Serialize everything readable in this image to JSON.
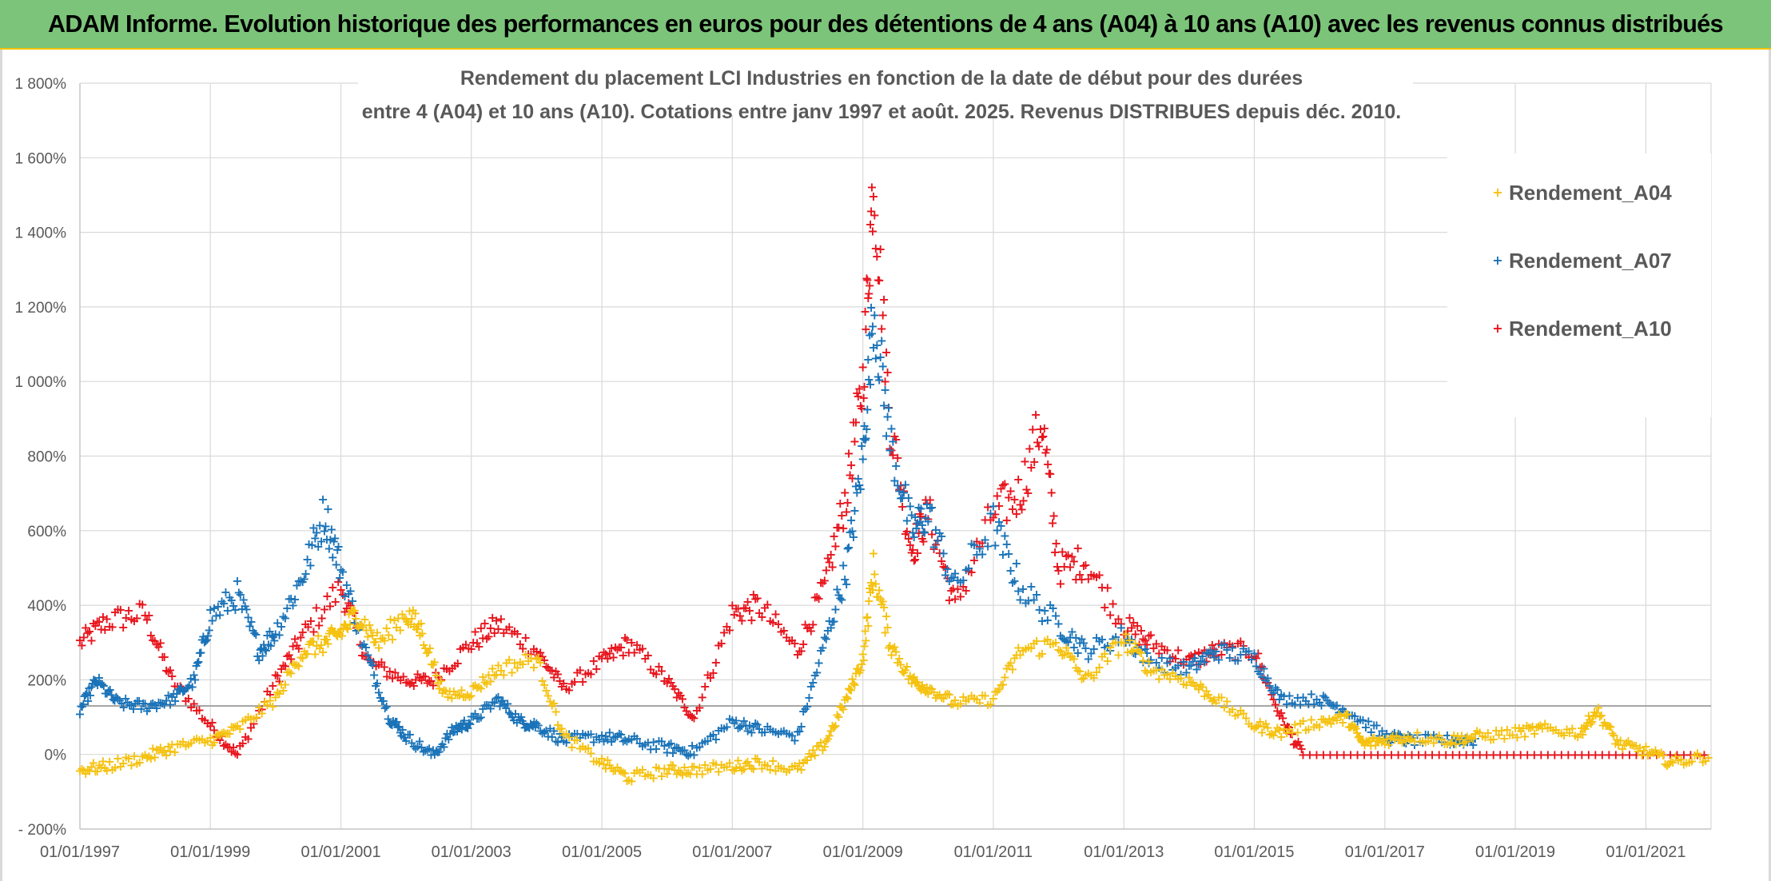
{
  "banner": {
    "title": "ADAM Informe. Evolution historique des performances en euros pour des détentions de 4 ans (A04) à 10 ans (A10) avec les revenus connus distribués"
  },
  "chart_data": {
    "type": "scatter",
    "title_lines": [
      "Rendement du placement LCI Industries en fonction de la date de début pour des durées",
      "entre 4 (A04) et 10 ans (A10). Cotations entre janv 1997 et août. 2025. Revenus DISTRIBUES depuis déc. 2010."
    ],
    "x_axis": {
      "type": "date",
      "range": [
        "1997-01-01",
        "2022-01-01"
      ],
      "tick_labels": [
        "01/01/1997",
        "01/01/1999",
        "01/01/2001",
        "01/01/2003",
        "01/01/2005",
        "01/01/2007",
        "01/01/2009",
        "01/01/2011",
        "01/01/2013",
        "01/01/2015",
        "01/01/2017",
        "01/01/2019",
        "01/01/2021"
      ]
    },
    "y_axis": {
      "unit": "%",
      "range": [
        -200,
        1800
      ],
      "tick_values": [
        -200,
        0,
        200,
        400,
        600,
        800,
        1000,
        1200,
        1400,
        1600,
        1800
      ],
      "tick_labels": [
        "- 200%",
        "0%",
        "200%",
        "400%",
        "600%",
        "800%",
        "1 000%",
        "1 200%",
        "1 400%",
        "1 600%",
        "1 800%"
      ]
    },
    "grid": true,
    "reference_line_y": 130,
    "legend_position": "top-right",
    "marker": "+",
    "series": [
      {
        "name": "Rendement_A04",
        "color": "#f5c211",
        "points": [
          [
            "1997-01-01",
            -40
          ],
          [
            "1997-06-01",
            -30
          ],
          [
            "1998-01-01",
            -5
          ],
          [
            "1998-06-01",
            20
          ],
          [
            "1999-01-01",
            40
          ],
          [
            "1999-06-01",
            70
          ],
          [
            "2000-01-01",
            150
          ],
          [
            "2000-06-01",
            280
          ],
          [
            "2000-10-01",
            300
          ],
          [
            "2001-01-01",
            330
          ],
          [
            "2001-04-01",
            380
          ],
          [
            "2001-08-01",
            300
          ],
          [
            "2002-01-01",
            380
          ],
          [
            "2002-04-01",
            330
          ],
          [
            "2002-08-01",
            160
          ],
          [
            "2003-01-01",
            170
          ],
          [
            "2003-06-01",
            230
          ],
          [
            "2004-01-01",
            260
          ],
          [
            "2004-06-01",
            50
          ],
          [
            "2005-01-01",
            -20
          ],
          [
            "2005-06-01",
            -60
          ],
          [
            "2006-01-01",
            -40
          ],
          [
            "2006-06-01",
            -40
          ],
          [
            "2007-01-01",
            -30
          ],
          [
            "2007-06-01",
            -20
          ],
          [
            "2008-01-01",
            -40
          ],
          [
            "2008-06-01",
            30
          ],
          [
            "2008-10-01",
            150
          ],
          [
            "2009-01-01",
            260
          ],
          [
            "2009-03-01",
            500
          ],
          [
            "2009-06-01",
            300
          ],
          [
            "2009-10-01",
            200
          ],
          [
            "2010-01-01",
            180
          ],
          [
            "2010-06-01",
            140
          ],
          [
            "2011-01-01",
            150
          ],
          [
            "2011-06-01",
            280
          ],
          [
            "2012-01-01",
            300
          ],
          [
            "2012-06-01",
            200
          ],
          [
            "2013-01-01",
            310
          ],
          [
            "2013-06-01",
            230
          ],
          [
            "2014-01-01",
            200
          ],
          [
            "2014-06-01",
            150
          ],
          [
            "2015-01-01",
            80
          ],
          [
            "2015-06-01",
            60
          ],
          [
            "2016-01-01",
            90
          ],
          [
            "2016-06-01",
            100
          ],
          [
            "2016-09-01",
            30
          ],
          [
            "2017-01-01",
            40
          ],
          [
            "2017-06-01",
            50
          ],
          [
            "2018-01-01",
            40
          ],
          [
            "2018-06-01",
            50
          ],
          [
            "2019-01-01",
            60
          ],
          [
            "2019-06-01",
            70
          ],
          [
            "2020-01-01",
            60
          ],
          [
            "2020-04-01",
            120
          ],
          [
            "2020-08-01",
            30
          ],
          [
            "2021-01-01",
            10
          ],
          [
            "2021-06-01",
            -20
          ],
          [
            "2022-01-01",
            0
          ]
        ]
      },
      {
        "name": "Rendement_A07",
        "color": "#1a73b8",
        "points": [
          [
            "1997-01-01",
            120
          ],
          [
            "1997-04-01",
            200
          ],
          [
            "1997-08-01",
            140
          ],
          [
            "1998-01-01",
            130
          ],
          [
            "1998-06-01",
            150
          ],
          [
            "1998-10-01",
            200
          ],
          [
            "1999-01-01",
            370
          ],
          [
            "1999-06-01",
            430
          ],
          [
            "1999-10-01",
            280
          ],
          [
            "2000-01-01",
            330
          ],
          [
            "2000-06-01",
            480
          ],
          [
            "2000-10-01",
            650
          ],
          [
            "2001-01-01",
            500
          ],
          [
            "2001-06-01",
            260
          ],
          [
            "2001-10-01",
            100
          ],
          [
            "2002-01-01",
            50
          ],
          [
            "2002-06-01",
            0
          ],
          [
            "2002-10-01",
            70
          ],
          [
            "2003-01-01",
            90
          ],
          [
            "2003-06-01",
            150
          ],
          [
            "2003-10-01",
            90
          ],
          [
            "2004-01-01",
            80
          ],
          [
            "2004-06-01",
            40
          ],
          [
            "2005-01-01",
            50
          ],
          [
            "2005-06-01",
            40
          ],
          [
            "2006-01-01",
            20
          ],
          [
            "2006-06-01",
            10
          ],
          [
            "2007-01-01",
            90
          ],
          [
            "2007-06-01",
            70
          ],
          [
            "2008-01-01",
            50
          ],
          [
            "2008-06-01",
            300
          ],
          [
            "2008-10-01",
            500
          ],
          [
            "2009-01-01",
            800
          ],
          [
            "2009-03-01",
            1200
          ],
          [
            "2009-06-01",
            850
          ],
          [
            "2009-10-01",
            600
          ],
          [
            "2010-01-01",
            650
          ],
          [
            "2010-06-01",
            450
          ],
          [
            "2011-01-01",
            620
          ],
          [
            "2011-06-01",
            450
          ],
          [
            "2012-01-01",
            350
          ],
          [
            "2012-06-01",
            280
          ],
          [
            "2013-01-01",
            320
          ],
          [
            "2013-06-01",
            250
          ],
          [
            "2014-01-01",
            230
          ],
          [
            "2014-06-01",
            280
          ],
          [
            "2015-01-01",
            260
          ],
          [
            "2015-06-01",
            150
          ],
          [
            "2016-01-01",
            150
          ],
          [
            "2016-06-01",
            120
          ],
          [
            "2017-01-01",
            50
          ],
          [
            "2017-06-01",
            40
          ],
          [
            "2018-01-01",
            40
          ],
          [
            "2018-06-01",
            40
          ]
        ]
      },
      {
        "name": "Rendement_A10",
        "color": "#e8141c",
        "points": [
          [
            "1997-01-01",
            300
          ],
          [
            "1997-06-01",
            360
          ],
          [
            "1998-01-01",
            380
          ],
          [
            "1998-06-01",
            200
          ],
          [
            "1999-01-01",
            80
          ],
          [
            "1999-06-01",
            0
          ],
          [
            "2000-01-01",
            200
          ],
          [
            "2000-06-01",
            320
          ],
          [
            "2001-01-01",
            450
          ],
          [
            "2001-06-01",
            250
          ],
          [
            "2002-01-01",
            200
          ],
          [
            "2002-06-01",
            200
          ],
          [
            "2003-01-01",
            300
          ],
          [
            "2003-06-01",
            350
          ],
          [
            "2004-01-01",
            280
          ],
          [
            "2004-06-01",
            180
          ],
          [
            "2005-01-01",
            250
          ],
          [
            "2005-06-01",
            300
          ],
          [
            "2006-01-01",
            200
          ],
          [
            "2006-06-01",
            100
          ],
          [
            "2007-01-01",
            380
          ],
          [
            "2007-06-01",
            400
          ],
          [
            "2008-01-01",
            280
          ],
          [
            "2008-06-01",
            450
          ],
          [
            "2008-10-01",
            700
          ],
          [
            "2009-01-01",
            1000
          ],
          [
            "2009-03-01",
            1560
          ],
          [
            "2009-06-01",
            900
          ],
          [
            "2009-10-01",
            550
          ],
          [
            "2010-01-01",
            650
          ],
          [
            "2010-06-01",
            400
          ],
          [
            "2011-01-01",
            650
          ],
          [
            "2011-06-01",
            700
          ],
          [
            "2011-10-01",
            900
          ],
          [
            "2012-01-01",
            500
          ],
          [
            "2012-06-01",
            520
          ],
          [
            "2013-01-01",
            350
          ],
          [
            "2013-06-01",
            300
          ],
          [
            "2014-01-01",
            250
          ],
          [
            "2014-06-01",
            280
          ],
          [
            "2015-01-01",
            280
          ],
          [
            "2015-06-01",
            100
          ],
          [
            "2015-10-01",
            0
          ],
          [
            "2022-01-01",
            0
          ]
        ]
      }
    ]
  }
}
